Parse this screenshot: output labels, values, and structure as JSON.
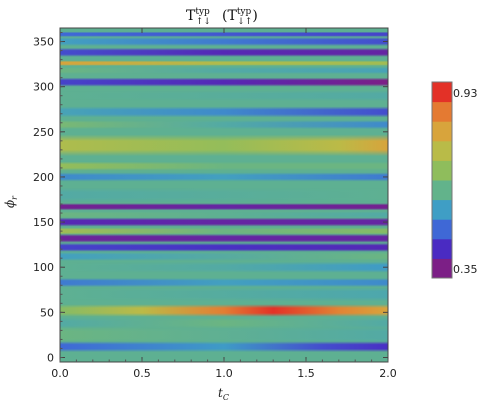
{
  "chart_data": {
    "type": "heatmap",
    "title_rich": [
      {
        "main": "T",
        "sup": "typ",
        "sub": "↑↓"
      },
      {
        "prefix": "(",
        "main": "T",
        "sup": "typ",
        "sub": "↓↑",
        "suffix": ")"
      }
    ],
    "xlabel": "t",
    "xlabel_sub": "C",
    "ylabel": "ϕ",
    "ylabel_sub": "r",
    "xlim": [
      0.0,
      2.0
    ],
    "ylim": [
      -5,
      365
    ],
    "x_ticks": [
      "0.0",
      "0.5",
      "1.0",
      "1.5",
      "2.0"
    ],
    "y_ticks": [
      "0",
      "50",
      "100",
      "150",
      "200",
      "250",
      "300",
      "350"
    ],
    "colorbar": {
      "min_label": "0.35",
      "max_label": "0.93",
      "min": 0.35,
      "max": 0.93,
      "colors": [
        "#7c1f86",
        "#4a2bc2",
        "#3f68d6",
        "#3f9ec5",
        "#62b38b",
        "#8fbd5c",
        "#b9bb48",
        "#d8a43c",
        "#e47a32",
        "#e33127"
      ]
    },
    "bands": [
      {
        "y": 0,
        "width": 8,
        "values": [
          [
            0,
            0.6
          ],
          [
            2,
            0.6
          ]
        ]
      },
      {
        "y": 12,
        "width": 6,
        "values": [
          [
            0,
            0.48
          ],
          [
            1,
            0.54
          ],
          [
            1.6,
            0.45
          ],
          [
            2,
            0.42
          ]
        ]
      },
      {
        "y": 25,
        "width": 10,
        "values": [
          [
            0,
            0.62
          ],
          [
            2,
            0.58
          ]
        ]
      },
      {
        "y": 38,
        "width": 6,
        "values": [
          [
            0,
            0.58
          ],
          [
            1,
            0.62
          ],
          [
            2,
            0.58
          ]
        ]
      },
      {
        "y": 52,
        "width": 7,
        "values": [
          [
            0,
            0.66
          ],
          [
            0.5,
            0.74
          ],
          [
            1.0,
            0.86
          ],
          [
            1.3,
            0.93
          ],
          [
            1.7,
            0.85
          ],
          [
            2,
            0.8
          ]
        ]
      },
      {
        "y": 70,
        "width": 8,
        "values": [
          [
            0,
            0.6
          ],
          [
            2,
            0.57
          ]
        ]
      },
      {
        "y": 83,
        "width": 5,
        "values": [
          [
            0,
            0.5
          ],
          [
            1,
            0.55
          ],
          [
            2,
            0.52
          ]
        ]
      },
      {
        "y": 100,
        "width": 6,
        "values": [
          [
            0,
            0.6
          ],
          [
            1,
            0.58
          ],
          [
            2,
            0.54
          ]
        ]
      },
      {
        "y": 112,
        "width": 5,
        "values": [
          [
            0,
            0.55
          ],
          [
            2,
            0.62
          ]
        ]
      },
      {
        "y": 122,
        "width": 5,
        "values": [
          [
            0,
            0.44
          ],
          [
            1,
            0.42
          ],
          [
            2,
            0.4
          ]
        ]
      },
      {
        "y": 132,
        "width": 5,
        "values": [
          [
            0,
            0.37
          ],
          [
            1,
            0.38
          ],
          [
            2,
            0.38
          ]
        ]
      },
      {
        "y": 140,
        "width": 4,
        "values": [
          [
            0,
            0.7
          ],
          [
            1,
            0.62
          ],
          [
            2,
            0.66
          ]
        ]
      },
      {
        "y": 150,
        "width": 5,
        "values": [
          [
            0,
            0.4
          ],
          [
            1,
            0.38
          ],
          [
            2,
            0.38
          ]
        ]
      },
      {
        "y": 158,
        "width": 4,
        "values": [
          [
            0,
            0.62
          ],
          [
            1,
            0.6
          ],
          [
            2,
            0.58
          ]
        ]
      },
      {
        "y": 167,
        "width": 4,
        "values": [
          [
            0,
            0.36
          ],
          [
            1,
            0.38
          ],
          [
            2,
            0.36
          ]
        ]
      },
      {
        "y": 180,
        "width": 8,
        "values": [
          [
            0,
            0.58
          ],
          [
            2,
            0.6
          ]
        ]
      },
      {
        "y": 200,
        "width": 5,
        "values": [
          [
            0,
            0.52
          ],
          [
            1,
            0.55
          ],
          [
            2,
            0.5
          ]
        ]
      },
      {
        "y": 212,
        "width": 5,
        "values": [
          [
            0,
            0.68
          ],
          [
            1,
            0.62
          ],
          [
            2,
            0.62
          ]
        ]
      },
      {
        "y": 235,
        "width": 12,
        "values": [
          [
            0,
            0.72
          ],
          [
            1,
            0.68
          ],
          [
            1.7,
            0.74
          ],
          [
            2,
            0.8
          ]
        ]
      },
      {
        "y": 258,
        "width": 5,
        "values": [
          [
            0,
            0.64
          ],
          [
            1,
            0.58
          ],
          [
            2,
            0.52
          ]
        ]
      },
      {
        "y": 272,
        "width": 6,
        "values": [
          [
            0,
            0.56
          ],
          [
            1,
            0.52
          ],
          [
            2,
            0.45
          ]
        ]
      },
      {
        "y": 290,
        "width": 6,
        "values": [
          [
            0,
            0.6
          ],
          [
            2,
            0.58
          ]
        ]
      },
      {
        "y": 305,
        "width": 5,
        "values": [
          [
            0,
            0.44
          ],
          [
            1,
            0.4
          ],
          [
            2,
            0.35
          ]
        ]
      },
      {
        "y": 318,
        "width": 4,
        "values": [
          [
            0,
            0.62
          ],
          [
            1,
            0.58
          ],
          [
            2,
            0.56
          ]
        ]
      },
      {
        "y": 326,
        "width": 3,
        "values": [
          [
            0,
            0.8
          ],
          [
            1,
            0.72
          ],
          [
            2,
            0.7
          ]
        ]
      },
      {
        "y": 338,
        "width": 5,
        "values": [
          [
            0,
            0.45
          ],
          [
            1,
            0.4
          ],
          [
            2,
            0.38
          ]
        ]
      },
      {
        "y": 350,
        "width": 5,
        "values": [
          [
            0,
            0.55
          ],
          [
            1,
            0.5
          ],
          [
            2,
            0.45
          ]
        ]
      },
      {
        "y": 358,
        "width": 3,
        "values": [
          [
            0,
            0.48
          ],
          [
            2,
            0.44
          ]
        ]
      }
    ]
  }
}
